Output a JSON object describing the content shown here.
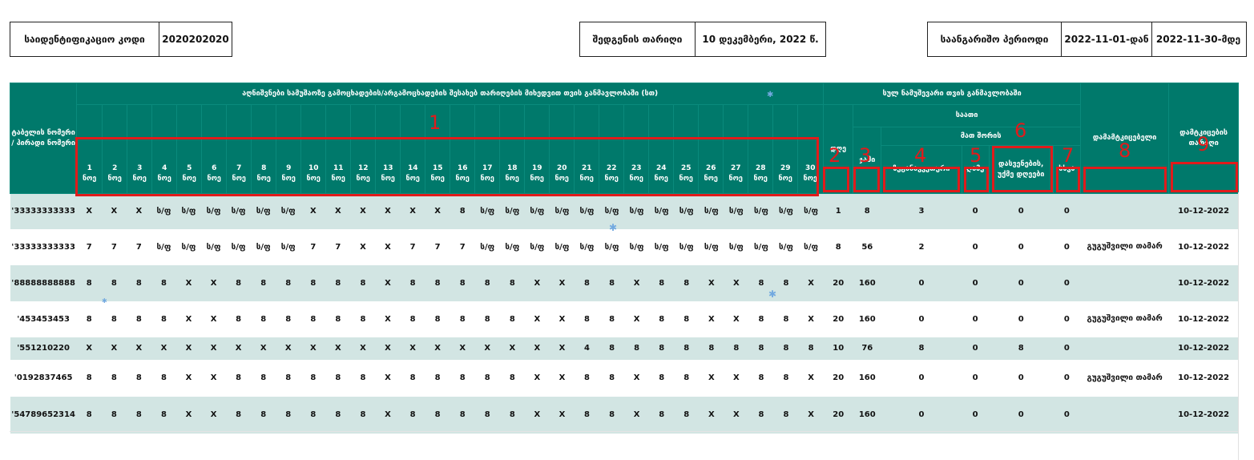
{
  "info": {
    "id_code_label": "საიდენტიფიკაციო კოდი",
    "id_code_value": "2020202020",
    "compiled_date_label": "შედგენის თარიღი",
    "compiled_date_value": "10 დეკემბერი, 2022 წ.",
    "period_label": "საანგარიშო პერიოდი",
    "period_from": "2022-11-01-დან",
    "period_to": "2022-11-30-მდე"
  },
  "table": {
    "col_tabel": "ტაბელის ნომერი / პირადი ნომერი",
    "group_days_header": "აღნიშვნები სამუშაოზე გამოცხადების/არგამოცხადების შესახებ თარიღების მიხედვით თვის განმავლობაში (სთ)",
    "group_total_header": "სულ ნამუშევარი თვის განმავლობაში",
    "hours_header": "საათი",
    "of_which_header": "მათ შორის",
    "day_month_suffix": "ნოე",
    "days": [
      "1",
      "2",
      "3",
      "4",
      "5",
      "6",
      "7",
      "8",
      "9",
      "10",
      "11",
      "12",
      "13",
      "14",
      "15",
      "16",
      "17",
      "18",
      "19",
      "20",
      "21",
      "22",
      "23",
      "24",
      "25",
      "26",
      "27",
      "28",
      "29",
      "30"
    ],
    "col_days": "დღე",
    "col_total": "ჯამი",
    "col_overtime": "ზეგანაკვეთური",
    "col_night": "ღამე",
    "col_holiday": "დასვენების, უქმე დღეები",
    "col_other": "სხვა",
    "col_approver": "დამამტკიცებელი",
    "col_approve_date": "დამტკიცების თარიღი"
  },
  "rows": [
    {
      "id": "'33333333333",
      "marks": [
        "X",
        "X",
        "X",
        "ს/ფ",
        "ს/ფ",
        "ს/ფ",
        "ს/ფ",
        "ს/ფ",
        "ს/ფ",
        "X",
        "X",
        "X",
        "X",
        "X",
        "X",
        "8",
        "ს/ფ",
        "ს/ფ",
        "ს/ფ",
        "ს/ფ",
        "ს/ფ",
        "ს/ფ",
        "ს/ფ",
        "ს/ფ",
        "ს/ფ",
        "ს/ფ",
        "ს/ფ",
        "ს/ფ",
        "ს/ფ",
        "ს/ფ"
      ],
      "days": "1",
      "total": "8",
      "overtime": "3",
      "night": "0",
      "holiday": "0",
      "other": "0",
      "approver": "",
      "date": "10-12-2022"
    },
    {
      "id": "'33333333333",
      "marks": [
        "7",
        "7",
        "7",
        "ს/ფ",
        "ს/ფ",
        "ს/ფ",
        "ს/ფ",
        "ს/ფ",
        "ს/ფ",
        "7",
        "7",
        "X",
        "X",
        "7",
        "7",
        "7",
        "ს/ფ",
        "ს/ფ",
        "ს/ფ",
        "ს/ფ",
        "ს/ფ",
        "ს/ფ",
        "ს/ფ",
        "ს/ფ",
        "ს/ფ",
        "ს/ფ",
        "ს/ფ",
        "ს/ფ",
        "ს/ფ",
        "ს/ფ"
      ],
      "days": "8",
      "total": "56",
      "overtime": "2",
      "night": "0",
      "holiday": "0",
      "other": "0",
      "approver": "გუგუშვილი თამარ",
      "date": "10-12-2022"
    },
    {
      "id": "'88888888888",
      "marks": [
        "8",
        "8",
        "8",
        "8",
        "X",
        "X",
        "8",
        "8",
        "8",
        "8",
        "8",
        "8",
        "X",
        "8",
        "8",
        "8",
        "8",
        "8",
        "X",
        "X",
        "8",
        "8",
        "X",
        "8",
        "8",
        "X",
        "X",
        "8",
        "8",
        "X"
      ],
      "days": "20",
      "total": "160",
      "overtime": "0",
      "night": "0",
      "holiday": "0",
      "other": "0",
      "approver": "",
      "date": "10-12-2022"
    },
    {
      "id": "'453453453",
      "marks": [
        "8",
        "8",
        "8",
        "8",
        "X",
        "X",
        "8",
        "8",
        "8",
        "8",
        "8",
        "8",
        "X",
        "8",
        "8",
        "8",
        "8",
        "8",
        "X",
        "X",
        "8",
        "8",
        "X",
        "8",
        "8",
        "X",
        "X",
        "8",
        "8",
        "X"
      ],
      "days": "20",
      "total": "160",
      "overtime": "0",
      "night": "0",
      "holiday": "0",
      "other": "0",
      "approver": "გუგუშვილი თამარ",
      "date": "10-12-2022"
    },
    {
      "id": "'551210220",
      "marks": [
        "X",
        "X",
        "X",
        "X",
        "X",
        "X",
        "X",
        "X",
        "X",
        "X",
        "X",
        "X",
        "X",
        "X",
        "X",
        "X",
        "X",
        "X",
        "X",
        "X",
        "4",
        "8",
        "8",
        "8",
        "8",
        "8",
        "8",
        "8",
        "8",
        "8"
      ],
      "days": "10",
      "total": "76",
      "overtime": "8",
      "night": "0",
      "holiday": "8",
      "other": "0",
      "approver": "",
      "date": "10-12-2022"
    },
    {
      "id": "'0192837465",
      "marks": [
        "8",
        "8",
        "8",
        "8",
        "X",
        "X",
        "8",
        "8",
        "8",
        "8",
        "8",
        "8",
        "X",
        "8",
        "8",
        "8",
        "8",
        "8",
        "X",
        "X",
        "8",
        "8",
        "X",
        "8",
        "8",
        "X",
        "X",
        "8",
        "8",
        "X"
      ],
      "days": "20",
      "total": "160",
      "overtime": "0",
      "night": "0",
      "holiday": "0",
      "other": "0",
      "approver": "გუგუშვილი თამარ",
      "date": "10-12-2022"
    },
    {
      "id": "'54789652314",
      "marks": [
        "8",
        "8",
        "8",
        "8",
        "X",
        "X",
        "8",
        "8",
        "8",
        "8",
        "8",
        "8",
        "X",
        "8",
        "8",
        "8",
        "8",
        "8",
        "X",
        "X",
        "8",
        "8",
        "X",
        "8",
        "8",
        "X",
        "X",
        "8",
        "8",
        "X"
      ],
      "days": "20",
      "total": "160",
      "overtime": "0",
      "night": "0",
      "holiday": "0",
      "other": "0",
      "approver": "",
      "date": "10-12-2022"
    }
  ],
  "annotations": [
    "1",
    "2",
    "3",
    "4",
    "5",
    "6",
    "7",
    "8",
    "9"
  ],
  "colors": {
    "header_bg": "#00796b",
    "row_alt_bg": "#d2e5e3",
    "annotation": "#e11b1b"
  }
}
